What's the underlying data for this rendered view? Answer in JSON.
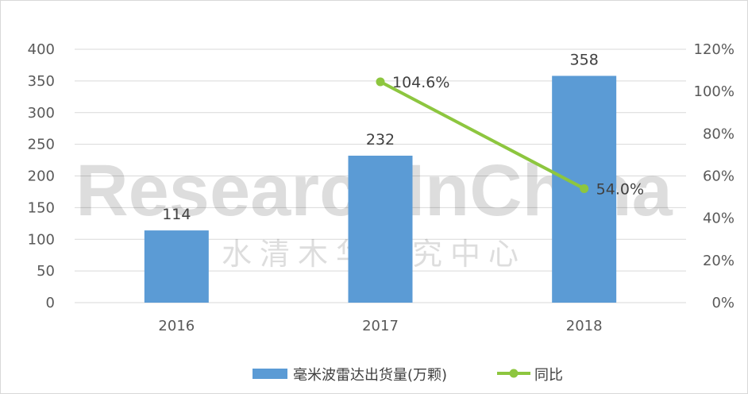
{
  "chart_data": {
    "type": "bar",
    "categories": [
      "2016",
      "2017",
      "2018"
    ],
    "series": [
      {
        "name": "毫米波雷达出货量(万颗)",
        "type": "bar",
        "axis": "left",
        "values": [
          114,
          232,
          358
        ],
        "color": "#5b9bd5"
      },
      {
        "name": "同比",
        "type": "line",
        "axis": "right",
        "values": [
          null,
          104.6,
          54.0
        ],
        "labels": [
          "",
          "104.6%",
          "54.0%"
        ],
        "color": "#8dc63f"
      }
    ],
    "y_left": {
      "min": 0,
      "max": 400,
      "ticks": [
        "0",
        "50",
        "100",
        "150",
        "200",
        "250",
        "300",
        "350",
        "400"
      ]
    },
    "y_right": {
      "min": 0,
      "max": 120,
      "ticks": [
        "0%",
        "20%",
        "40%",
        "60%",
        "80%",
        "100%",
        "120%"
      ]
    },
    "grid": true,
    "legend_position": "bottom",
    "watermark": [
      "ResearchInChina",
      "水清木华研究中心"
    ]
  }
}
